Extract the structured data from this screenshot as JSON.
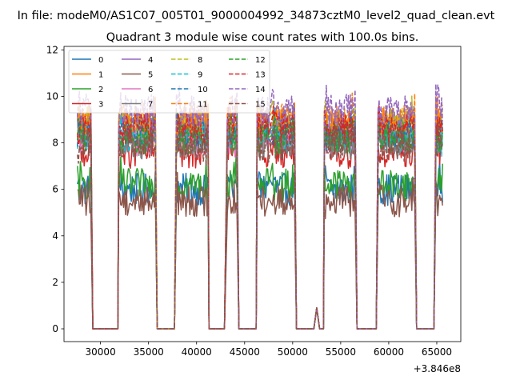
{
  "chart_data": {
    "type": "line",
    "suptitle": "In file: modeM0/AS1C07_005T01_9000004992_34873cztM0_level2_quad_clean.evt",
    "title": "Quadrant 3 module wise count rates with 100.0s bins.",
    "xlabel": "",
    "ylabel": "",
    "x_offset_label": "+3.846e8",
    "xlim": [
      26200,
      67500
    ],
    "ylim": [
      -0.55,
      12.15
    ],
    "xticks": [
      30000,
      35000,
      40000,
      45000,
      50000,
      55000,
      60000,
      65000
    ],
    "xtick_labels": [
      "30000",
      "35000",
      "40000",
      "45000",
      "50000",
      "55000",
      "60000",
      "65000"
    ],
    "yticks": [
      0,
      2,
      4,
      6,
      8,
      10,
      12
    ],
    "ytick_labels": [
      "0",
      "2",
      "4",
      "6",
      "8",
      "10",
      "12"
    ],
    "on_segments": [
      [
        27600,
        29000
      ],
      [
        31900,
        35700
      ],
      [
        37900,
        41200
      ],
      [
        43200,
        44200
      ],
      [
        46300,
        47500
      ],
      [
        47900,
        50200
      ],
      [
        53300,
        56500
      ],
      [
        58900,
        62700
      ],
      [
        64900,
        65600
      ]
    ],
    "off_segments": [
      [
        29200,
        31800
      ],
      [
        35900,
        37800
      ],
      [
        41300,
        43000
      ],
      [
        44400,
        46200
      ],
      [
        50400,
        52200
      ],
      [
        52800,
        53200
      ],
      [
        56700,
        58700
      ],
      [
        62900,
        64800
      ]
    ],
    "series": [
      {
        "name": "0",
        "color": "#1f77b4",
        "dash": "solid",
        "level": 6.0
      },
      {
        "name": "1",
        "color": "#ff7f0e",
        "dash": "solid",
        "level": 8.8
      },
      {
        "name": "2",
        "color": "#2ca02c",
        "dash": "solid",
        "level": 6.2
      },
      {
        "name": "3",
        "color": "#d62728",
        "dash": "solid",
        "level": 7.6
      },
      {
        "name": "4",
        "color": "#9467bd",
        "dash": "solid",
        "level": 8.7
      },
      {
        "name": "5",
        "color": "#8c564b",
        "dash": "solid",
        "level": 5.5
      },
      {
        "name": "6",
        "color": "#e377c2",
        "dash": "solid",
        "level": 8.1
      },
      {
        "name": "7",
        "color": "#7f7f7f",
        "dash": "solid",
        "level": 8.0
      },
      {
        "name": "8",
        "color": "#bcbd22",
        "dash": "dashed",
        "level": 8.9
      },
      {
        "name": "9",
        "color": "#17becf",
        "dash": "dashed",
        "level": 8.3
      },
      {
        "name": "10",
        "color": "#1f77b4",
        "dash": "dashed",
        "level": 8.5
      },
      {
        "name": "11",
        "color": "#ff7f0e",
        "dash": "dashed",
        "level": 9.0
      },
      {
        "name": "12",
        "color": "#2ca02c",
        "dash": "dashed",
        "level": 8.2
      },
      {
        "name": "13",
        "color": "#d62728",
        "dash": "dashed",
        "level": 8.6
      },
      {
        "name": "14",
        "color": "#9467bd",
        "dash": "dashed",
        "level": 9.4
      },
      {
        "name": "15",
        "color": "#8c564b",
        "dash": "dashed",
        "level": 7.9
      }
    ]
  }
}
